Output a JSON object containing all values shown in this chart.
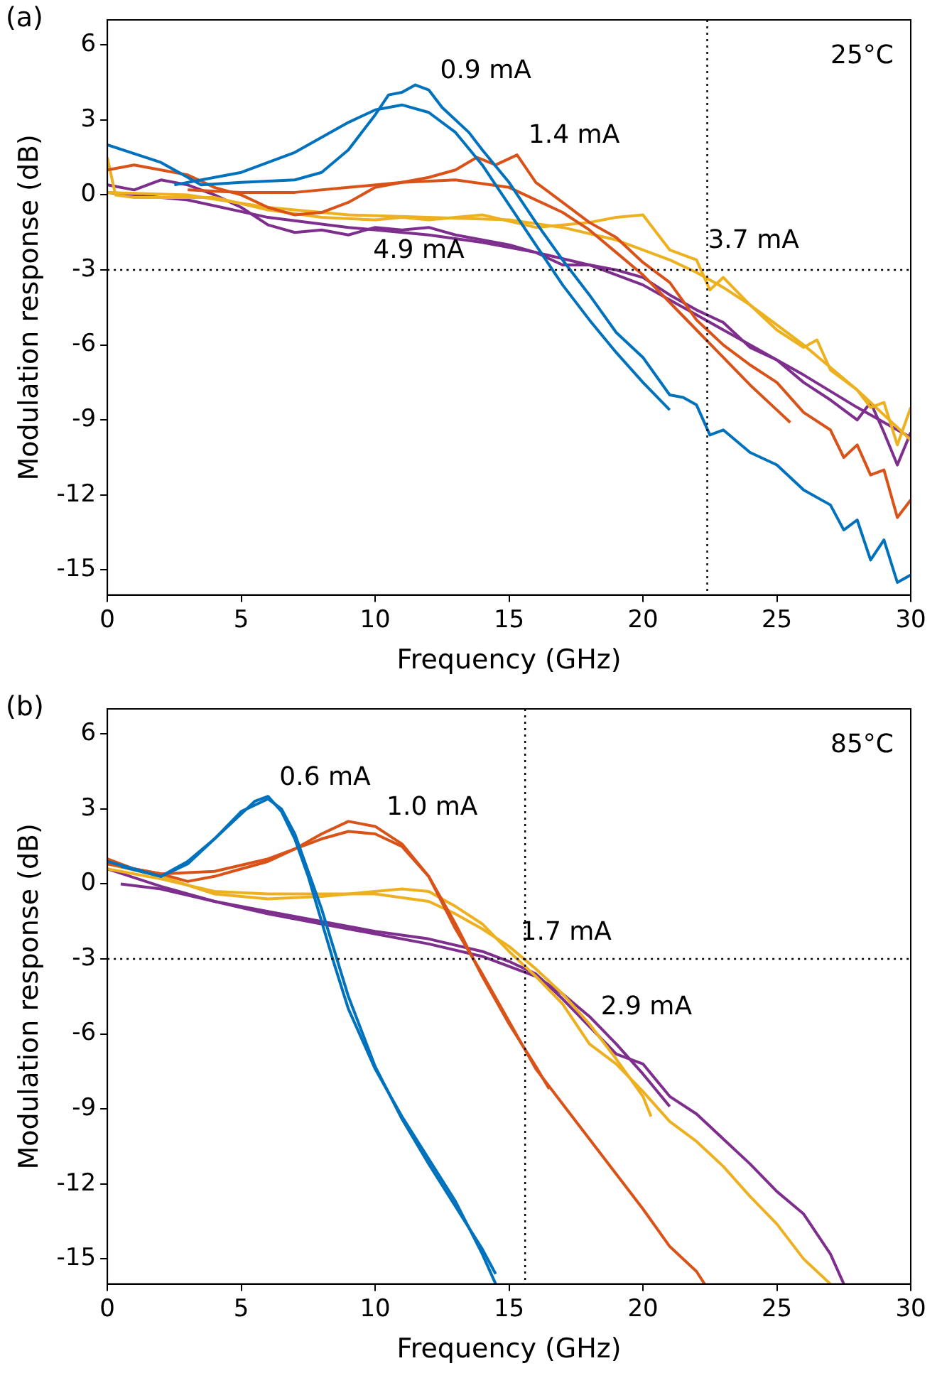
{
  "chart_data": [
    {
      "type": "line",
      "title": "(a)",
      "xlabel": "Frequency (GHz)",
      "ylabel": "Modulation response (dB)",
      "xlim": [
        0,
        30
      ],
      "xticks": [
        0,
        5,
        10,
        15,
        20,
        25,
        30
      ],
      "ylim": [
        -16,
        7
      ],
      "yticks": [
        -15,
        -12,
        -9,
        -6,
        -3,
        0,
        3,
        6
      ],
      "grid": false,
      "legend": false,
      "marker": "none",
      "line_style": "solid",
      "ref_lines": [
        {
          "axis": "y",
          "value": -3,
          "line_style": "dotted",
          "color": "#000000"
        },
        {
          "axis": "x",
          "value": 22.4,
          "line_style": "dotted",
          "color": "#000000"
        }
      ],
      "annotations": [
        "25°C",
        {
          "text": "0.9 mA",
          "x": 12,
          "y": 4.2
        },
        {
          "text": "1.4 mA",
          "x": 15.3,
          "y": 1.6
        },
        {
          "text": "3.7 mA",
          "x": 22,
          "y": -2.6
        },
        {
          "text": "4.9 mA",
          "x": 9.5,
          "y": -3
        }
      ],
      "series": [
        {
          "color": "#0072bd",
          "x": [
            0,
            2,
            3.5,
            5,
            7,
            8,
            9,
            10,
            10.5,
            11,
            11.5,
            12,
            12.5,
            13.5,
            14,
            15,
            16,
            17,
            18,
            19,
            20,
            21,
            21.5,
            22,
            22.5,
            23,
            24,
            25,
            26,
            27,
            27.5,
            28,
            28.5,
            29,
            29.5,
            30
          ],
          "values": [
            2.0,
            1.3,
            0.4,
            0.5,
            0.6,
            0.9,
            1.8,
            3.2,
            4.0,
            4.1,
            4.4,
            4.2,
            3.5,
            2.5,
            1.8,
            0.5,
            -1.1,
            -2.6,
            -4.0,
            -5.5,
            -6.5,
            -8.0,
            -8.1,
            -8.4,
            -9.6,
            -9.4,
            -10.3,
            -10.8,
            -11.8,
            -12.4,
            -13.4,
            -13.0,
            -14.6,
            -13.8,
            -15.5,
            -15.2
          ]
        },
        {
          "color": "#0072bd",
          "x": [
            2.5,
            5,
            7,
            9,
            10,
            11,
            12,
            13,
            14,
            15,
            16,
            17,
            18,
            19,
            20,
            21
          ],
          "values": [
            0.4,
            0.9,
            1.7,
            2.9,
            3.4,
            3.6,
            3.3,
            2.5,
            1.2,
            -0.4,
            -2.0,
            -3.6,
            -5.0,
            -6.3,
            -7.5,
            -8.6
          ]
        },
        {
          "color": "#d95319",
          "x": [
            0,
            1,
            2,
            3,
            4,
            5,
            6,
            7,
            8,
            9,
            10,
            11,
            12,
            13,
            13.8,
            14.5,
            15.3,
            16,
            17,
            18,
            19,
            20,
            21,
            22,
            22.5,
            23,
            24,
            25,
            26,
            27,
            27.5,
            28,
            28.5,
            29,
            29.5,
            30
          ],
          "values": [
            1.0,
            1.2,
            1.0,
            0.8,
            0.3,
            0.0,
            -0.5,
            -0.8,
            -0.7,
            -0.3,
            0.3,
            0.5,
            0.7,
            1.0,
            1.5,
            1.2,
            1.6,
            0.5,
            -0.3,
            -1.1,
            -1.7,
            -2.7,
            -3.5,
            -5.0,
            -5.5,
            -6.0,
            -6.8,
            -7.5,
            -8.7,
            -9.4,
            -10.5,
            -10.0,
            -11.2,
            -11.0,
            -12.9,
            -12.2
          ]
        },
        {
          "color": "#d95319",
          "x": [
            3,
            5,
            7,
            9,
            11,
            13,
            15,
            17,
            18,
            19,
            20,
            21,
            22,
            23,
            24,
            25,
            25.5
          ],
          "values": [
            0.2,
            0.1,
            0.1,
            0.3,
            0.5,
            0.6,
            0.3,
            -0.7,
            -1.4,
            -2.3,
            -3.2,
            -4.3,
            -5.4,
            -6.5,
            -7.6,
            -8.6,
            -9.1
          ]
        },
        {
          "color": "#edb120",
          "x": [
            0,
            0.3,
            1,
            3,
            4,
            6,
            8,
            10,
            11,
            12,
            14,
            16,
            17,
            18,
            19,
            20,
            20.5,
            21,
            22,
            22.5,
            23,
            24,
            25,
            26,
            26.5,
            27,
            28,
            28.5,
            29,
            29.5,
            30
          ],
          "values": [
            1.5,
            0.0,
            -0.1,
            -0.1,
            -0.1,
            -0.6,
            -0.9,
            -1.0,
            -0.9,
            -1.0,
            -0.8,
            -1.3,
            -1.2,
            -1.1,
            -0.9,
            -0.8,
            -1.5,
            -2.2,
            -2.6,
            -3.8,
            -3.3,
            -4.4,
            -5.4,
            -6.1,
            -5.8,
            -7.0,
            -7.8,
            -8.5,
            -8.3,
            -10.0,
            -8.5
          ]
        },
        {
          "color": "#edb120",
          "x": [
            0,
            3,
            6,
            9,
            12,
            15,
            17,
            19,
            20,
            21,
            22,
            23,
            24,
            25,
            26,
            27,
            28,
            29,
            30
          ],
          "values": [
            0.1,
            0.0,
            -0.5,
            -0.8,
            -0.9,
            -1.0,
            -1.3,
            -1.8,
            -2.2,
            -2.6,
            -3.1,
            -3.7,
            -4.4,
            -5.2,
            -6.0,
            -6.9,
            -7.8,
            -8.8,
            -9.8
          ]
        },
        {
          "color": "#7e2f8e",
          "x": [
            0,
            1,
            2,
            3,
            4,
            5,
            6,
            7,
            8,
            9,
            10,
            11,
            12,
            13,
            14,
            15,
            16,
            17,
            18,
            19,
            20,
            21,
            22,
            23,
            24,
            25,
            26,
            27,
            28,
            28.5,
            29,
            29.5,
            30
          ],
          "values": [
            0.4,
            0.2,
            0.6,
            0.4,
            0.0,
            -0.5,
            -1.2,
            -1.5,
            -1.4,
            -1.6,
            -1.3,
            -1.4,
            -1.3,
            -1.6,
            -1.8,
            -2.0,
            -2.3,
            -2.8,
            -2.8,
            -3.0,
            -3.3,
            -4.0,
            -4.6,
            -5.1,
            -6.1,
            -6.6,
            -7.5,
            -8.2,
            -9.0,
            -8.3,
            -9.5,
            -10.8,
            -9.5
          ]
        },
        {
          "color": "#7e2f8e",
          "x": [
            0,
            3,
            6,
            9,
            12,
            14,
            16,
            18,
            20,
            22,
            24,
            26,
            28,
            30
          ],
          "values": [
            0.1,
            -0.2,
            -0.9,
            -1.3,
            -1.6,
            -1.9,
            -2.3,
            -2.8,
            -3.6,
            -4.8,
            -6.0,
            -7.2,
            -8.5,
            -9.7
          ]
        }
      ]
    },
    {
      "type": "line",
      "title": "(b)",
      "xlabel": "Frequency (GHz)",
      "ylabel": "Modulation response (dB)",
      "xlim": [
        0,
        30
      ],
      "xticks": [
        0,
        5,
        10,
        15,
        20,
        25,
        30
      ],
      "ylim": [
        -16,
        7
      ],
      "yticks": [
        -15,
        -12,
        -9,
        -6,
        -3,
        0,
        3,
        6
      ],
      "grid": false,
      "legend": false,
      "marker": "none",
      "line_style": "solid",
      "ref_lines": [
        {
          "axis": "y",
          "value": -3,
          "line_style": "dotted",
          "color": "#000000"
        },
        {
          "axis": "x",
          "value": 15.6,
          "line_style": "dotted",
          "color": "#000000"
        }
      ],
      "annotations": [
        "85°C",
        {
          "text": "0.6 mA",
          "x": 6,
          "y": 3.5
        },
        {
          "text": "1.0 mA",
          "x": 10,
          "y": 2.3
        },
        {
          "text": "1.7 mA",
          "x": 15,
          "y": -2.7
        },
        {
          "text": "2.9 mA",
          "x": 18,
          "y": -5.7
        }
      ],
      "series": [
        {
          "color": "#0072bd",
          "x": [
            0,
            1,
            2,
            3,
            4,
            5,
            5.5,
            6,
            6.5,
            7,
            7.5,
            8,
            8.5,
            9,
            10,
            11,
            12,
            13,
            14,
            14.5
          ],
          "values": [
            0.9,
            0.6,
            0.3,
            0.9,
            1.8,
            2.8,
            3.3,
            3.5,
            2.9,
            1.8,
            0.3,
            -1.5,
            -3.3,
            -5.0,
            -7.4,
            -9.3,
            -11.0,
            -12.7,
            -14.8,
            -16.0
          ]
        },
        {
          "color": "#0072bd",
          "x": [
            0.5,
            2,
            3,
            4,
            5,
            6,
            6.5,
            7,
            8,
            9,
            10,
            11,
            12,
            13,
            14,
            14.5
          ],
          "values": [
            0.7,
            0.3,
            0.8,
            1.8,
            2.9,
            3.4,
            3.0,
            2.0,
            -1.0,
            -4.5,
            -7.3,
            -9.4,
            -11.2,
            -12.9,
            -14.6,
            -15.6
          ]
        },
        {
          "color": "#d95319",
          "x": [
            0,
            1,
            2,
            3,
            4,
            5,
            6,
            7,
            8,
            9,
            10,
            11,
            12,
            13,
            14,
            15,
            16,
            17,
            18,
            19,
            20,
            21,
            22,
            22.3
          ],
          "values": [
            1.0,
            0.6,
            0.4,
            0.1,
            0.3,
            0.6,
            0.9,
            1.4,
            2.0,
            2.5,
            2.3,
            1.6,
            0.3,
            -1.8,
            -3.6,
            -5.5,
            -7.4,
            -8.8,
            -10.2,
            -11.6,
            -13.0,
            -14.5,
            -15.5,
            -16.0
          ]
        },
        {
          "color": "#d95319",
          "x": [
            0,
            2,
            4,
            6,
            8,
            9,
            10,
            11,
            12,
            13,
            14,
            15,
            16,
            16.5
          ],
          "values": [
            0.8,
            0.4,
            0.5,
            1.0,
            1.8,
            2.1,
            2.0,
            1.5,
            0.3,
            -1.6,
            -3.7,
            -5.6,
            -7.3,
            -8.2
          ]
        },
        {
          "color": "#edb120",
          "x": [
            0,
            2,
            4,
            6,
            8,
            10,
            11,
            12,
            13,
            14,
            15,
            16,
            17,
            18,
            19,
            20,
            21,
            22,
            23,
            24,
            25,
            26,
            27
          ],
          "values": [
            0.8,
            0.3,
            -0.4,
            -0.6,
            -0.5,
            -0.3,
            -0.2,
            -0.3,
            -0.9,
            -1.6,
            -2.7,
            -3.7,
            -4.8,
            -6.4,
            -7.2,
            -8.3,
            -9.5,
            -10.3,
            -11.3,
            -12.5,
            -13.6,
            -15.0,
            -16.0
          ]
        },
        {
          "color": "#edb120",
          "x": [
            0,
            2,
            4,
            6,
            8,
            10,
            12,
            13,
            14,
            15,
            16,
            17,
            18,
            19,
            20,
            20.3
          ],
          "values": [
            0.6,
            0.2,
            -0.3,
            -0.4,
            -0.4,
            -0.4,
            -0.7,
            -1.2,
            -1.8,
            -2.5,
            -3.4,
            -4.4,
            -5.6,
            -7.0,
            -8.5,
            -9.3
          ]
        },
        {
          "color": "#7e2f8e",
          "x": [
            0,
            2,
            4,
            6,
            8,
            10,
            12,
            14,
            15,
            16,
            17,
            18,
            19,
            20,
            21,
            22,
            23,
            24,
            25,
            26,
            27,
            27.5
          ],
          "values": [
            0.6,
            -0.1,
            -0.7,
            -1.1,
            -1.5,
            -1.9,
            -2.2,
            -2.7,
            -3.1,
            -3.6,
            -4.6,
            -5.7,
            -6.8,
            -7.2,
            -8.5,
            -9.2,
            -10.2,
            -11.2,
            -12.3,
            -13.2,
            -14.8,
            -16.0
          ]
        },
        {
          "color": "#7e2f8e",
          "x": [
            0.5,
            2,
            4,
            6,
            8,
            10,
            12,
            14,
            16,
            17,
            18,
            19,
            20,
            21
          ],
          "values": [
            0.0,
            -0.2,
            -0.7,
            -1.2,
            -1.6,
            -2.0,
            -2.4,
            -2.9,
            -3.7,
            -4.4,
            -5.3,
            -6.4,
            -7.6,
            -8.9
          ]
        }
      ]
    }
  ]
}
